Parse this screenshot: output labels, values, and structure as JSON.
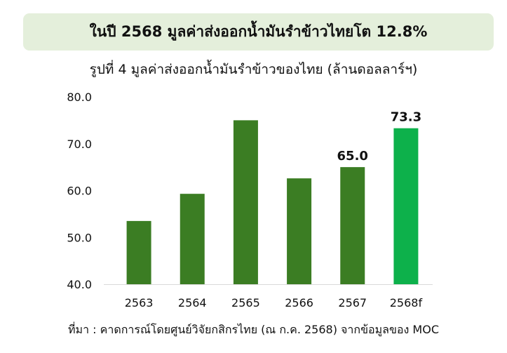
{
  "banner": {
    "text": "ในปี 2568 มูลค่าส่งออกน้ำมันรำข้าวไทยโต 12.8%"
  },
  "source": {
    "text": "ที่มา : คาดการณ์โดยศูนย์วิจัยกสิกรไทย (ณ ก.ค. 2568) จากข้อมูลของ MOC"
  },
  "colors": {
    "bar": "#3b7d23",
    "bar_highlight": "#0db14b",
    "banner_bg": "#e4efdb",
    "axis": "#d9d9d9"
  },
  "chart_data": {
    "type": "bar",
    "title": "รูปที่ 4 มูลค่าส่งออกน้ำมันรำข้าวของไทย (ล้านดอลลาร์ฯ)",
    "xlabel": "",
    "ylabel": "",
    "categories": [
      "2563",
      "2564",
      "2565",
      "2566",
      "2567",
      "2568f"
    ],
    "values": [
      53.5,
      59.3,
      75.0,
      62.6,
      65.0,
      73.3
    ],
    "data_labels": [
      "",
      "",
      "",
      "",
      "65.0",
      "73.3"
    ],
    "highlight_index": 5,
    "ylim": [
      40,
      80
    ],
    "yticks": [
      "40.0",
      "50.0",
      "60.0",
      "70.0",
      "80.0"
    ],
    "grid": false,
    "legend": "none"
  }
}
